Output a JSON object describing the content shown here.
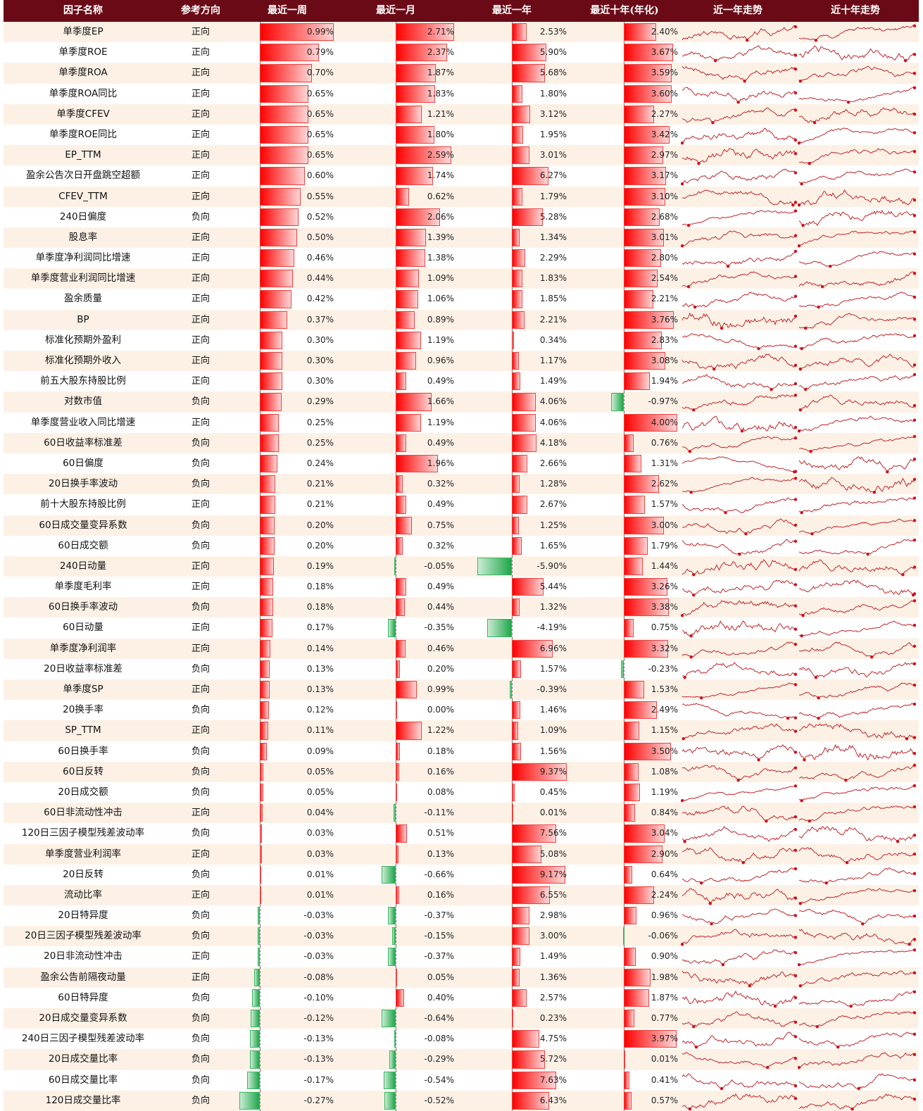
{
  "header": [
    "因子名称",
    "参考方向",
    "最近一周",
    "最近一月",
    "最近一年",
    "最近十年(年化)",
    "近一年走势",
    "近十年走势"
  ],
  "colors": {
    "header_bg": "#6b0a17",
    "row_alt_bg": "#fdf1e6",
    "positive": "#ff0000",
    "negative": "#1fa64a",
    "sparkline": "#c0262a"
  },
  "chart_data": {
    "type": "table",
    "columns": [
      "因子名称",
      "参考方向",
      "最近一周",
      "最近一月",
      "最近一年",
      "最近十年(年化)"
    ],
    "unit": "%",
    "rows": [
      [
        "单季度EP",
        "正向",
        0.99,
        2.71,
        2.53,
        2.4
      ],
      [
        "单季度ROE",
        "正向",
        0.79,
        2.37,
        5.9,
        3.67
      ],
      [
        "单季度ROA",
        "正向",
        0.7,
        1.87,
        5.68,
        3.59
      ],
      [
        "单季度ROA同比",
        "正向",
        0.65,
        1.83,
        1.8,
        3.6
      ],
      [
        "单季度CFEV",
        "正向",
        0.65,
        1.21,
        3.12,
        2.27
      ],
      [
        "单季度ROE同比",
        "正向",
        0.65,
        1.8,
        1.95,
        3.42
      ],
      [
        "EP_TTM",
        "正向",
        0.65,
        2.59,
        3.01,
        2.97
      ],
      [
        "盈余公告次日开盘跳空超额",
        "正向",
        0.6,
        1.74,
        6.27,
        3.17
      ],
      [
        "CFEV_TTM",
        "正向",
        0.55,
        0.62,
        1.79,
        3.1
      ],
      [
        "240日偏度",
        "负向",
        0.52,
        2.06,
        5.28,
        2.68
      ],
      [
        "股息率",
        "正向",
        0.5,
        1.39,
        1.34,
        3.01
      ],
      [
        "单季度净利润同比增速",
        "正向",
        0.46,
        1.38,
        2.29,
        2.8
      ],
      [
        "单季度营业利润同比增速",
        "正向",
        0.44,
        1.09,
        1.83,
        2.54
      ],
      [
        "盈余质量",
        "正向",
        0.42,
        1.06,
        1.85,
        2.21
      ],
      [
        "BP",
        "正向",
        0.37,
        0.89,
        2.21,
        3.76
      ],
      [
        "标准化预期外盈利",
        "正向",
        0.3,
        1.19,
        0.34,
        2.83
      ],
      [
        "标准化预期外收入",
        "正向",
        0.3,
        0.96,
        1.17,
        3.08
      ],
      [
        "前五大股东持股比例",
        "正向",
        0.3,
        0.49,
        1.49,
        1.94
      ],
      [
        "对数市值",
        "负向",
        0.29,
        1.66,
        4.06,
        -0.97
      ],
      [
        "单季度营业收入同比增速",
        "正向",
        0.25,
        1.19,
        4.06,
        4.0
      ],
      [
        "60日收益率标准差",
        "负向",
        0.25,
        0.49,
        4.18,
        0.76
      ],
      [
        "60日偏度",
        "负向",
        0.24,
        1.96,
        2.66,
        1.31
      ],
      [
        "20日换手率波动",
        "负向",
        0.21,
        0.32,
        1.28,
        2.62
      ],
      [
        "前十大股东持股比例",
        "正向",
        0.21,
        0.49,
        2.67,
        1.57
      ],
      [
        "60日成交量变异系数",
        "负向",
        0.2,
        0.75,
        1.25,
        3.0
      ],
      [
        "60日成交额",
        "负向",
        0.2,
        0.32,
        1.65,
        1.79
      ],
      [
        "240日动量",
        "正向",
        0.19,
        -0.05,
        -5.9,
        1.44
      ],
      [
        "单季度毛利率",
        "正向",
        0.18,
        0.49,
        5.44,
        3.26
      ],
      [
        "60日换手率波动",
        "负向",
        0.18,
        0.44,
        1.32,
        3.38
      ],
      [
        "60日动量",
        "正向",
        0.17,
        -0.35,
        -4.19,
        0.75
      ],
      [
        "单季度净利润率",
        "正向",
        0.14,
        0.46,
        6.96,
        3.32
      ],
      [
        "20日收益率标准差",
        "负向",
        0.13,
        0.2,
        1.57,
        -0.23
      ],
      [
        "单季度SP",
        "正向",
        0.13,
        0.99,
        -0.39,
        1.53
      ],
      [
        "20换手率",
        "负向",
        0.12,
        0.0,
        1.46,
        2.49
      ],
      [
        "SP_TTM",
        "正向",
        0.11,
        1.22,
        1.09,
        1.15
      ],
      [
        "60日换手率",
        "负向",
        0.09,
        0.18,
        1.56,
        3.5
      ],
      [
        "60日反转",
        "负向",
        0.05,
        0.16,
        9.37,
        1.08
      ],
      [
        "20日成交额",
        "负向",
        0.05,
        0.08,
        0.45,
        1.19
      ],
      [
        "60日非流动性冲击",
        "正向",
        0.04,
        -0.11,
        0.01,
        0.84
      ],
      [
        "120日三因子模型残差波动率",
        "负向",
        0.03,
        0.51,
        7.56,
        3.04
      ],
      [
        "单季度营业利润率",
        "正向",
        0.03,
        0.13,
        5.08,
        2.9
      ],
      [
        "20日反转",
        "负向",
        0.01,
        -0.66,
        9.17,
        0.64
      ],
      [
        "流动比率",
        "正向",
        0.01,
        0.16,
        6.55,
        2.24
      ],
      [
        "20日特异度",
        "负向",
        -0.03,
        -0.37,
        2.98,
        0.96
      ],
      [
        "20日三因子模型残差波动率",
        "负向",
        -0.03,
        -0.15,
        3.0,
        -0.06
      ],
      [
        "20日非流动性冲击",
        "正向",
        -0.03,
        -0.37,
        1.49,
        0.9
      ],
      [
        "盈余公告前隔夜动量",
        "正向",
        -0.08,
        0.05,
        1.36,
        1.98
      ],
      [
        "60日特异度",
        "负向",
        -0.1,
        0.4,
        2.57,
        1.87
      ],
      [
        "20日成交量变异系数",
        "负向",
        -0.12,
        -0.64,
        0.23,
        0.77
      ],
      [
        "240日三因子模型残差波动率",
        "负向",
        -0.13,
        -0.08,
        4.75,
        3.97
      ],
      [
        "20日成交量比率",
        "负向",
        -0.13,
        -0.29,
        5.72,
        0.01
      ],
      [
        "60日成交量比率",
        "负向",
        -0.17,
        -0.54,
        7.63,
        0.41
      ],
      [
        "120日成交量比率",
        "负向",
        -0.27,
        -0.52,
        6.43,
        0.57
      ]
    ]
  }
}
